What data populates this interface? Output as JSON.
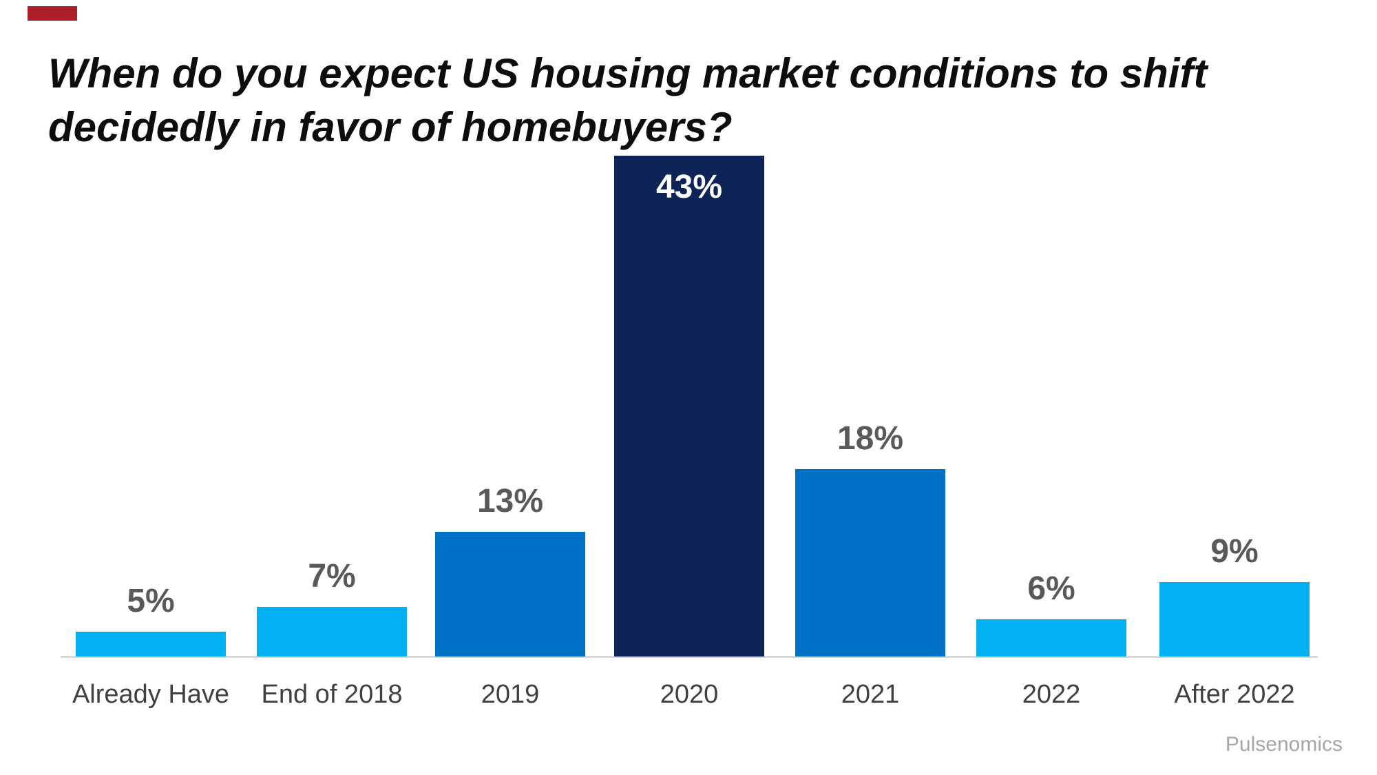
{
  "title": {
    "full": "When do you expect US housing market conditions to shift decidedly in favor of homebuyers?"
  },
  "attribution": "Pulsenomics",
  "colors": {
    "background": "#FFFFFF",
    "corner_mark": "#AD1F28",
    "title_text": "#0D0D0D",
    "axis_line": "#D9D9D9",
    "value_label": "#595959",
    "value_label_inside": "#FFFFFF",
    "category_label": "#404040",
    "attribution_text": "#A6A6A6",
    "bar_light_blue": "#00B0F0",
    "bar_medium_blue": "#0072C6",
    "bar_navy": "#0E2356"
  },
  "chart_data": {
    "type": "bar",
    "title": "When do you expect US housing market conditions to shift decidedly in favor of homebuyers?",
    "xlabel": "",
    "ylabel": "",
    "unit": "%",
    "grid": false,
    "legend": false,
    "axis_baseline_visible": true,
    "source": "Pulsenomics",
    "categories": [
      "Already Have",
      "End of 2018",
      "2019",
      "2020",
      "2021",
      "2022",
      "After 2022"
    ],
    "values": [
      5,
      7,
      13,
      43,
      18,
      6,
      9
    ],
    "value_labels": [
      "5%",
      "7%",
      "13%",
      "43%",
      "18%",
      "6%",
      "9%"
    ],
    "bars": [
      {
        "category": "Already Have",
        "value": 5,
        "display": "5%",
        "color": "#00B0F0",
        "label_inside": false
      },
      {
        "category": "End of 2018",
        "value": 7,
        "display": "7%",
        "color": "#00B0F0",
        "label_inside": false
      },
      {
        "category": "2019",
        "value": 13,
        "display": "13%",
        "color": "#0072C6",
        "label_inside": false
      },
      {
        "category": "2020",
        "value": 43,
        "display": "43%",
        "color": "#0E2356",
        "label_inside": true
      },
      {
        "category": "2021",
        "value": 18,
        "display": "18%",
        "color": "#0072C6",
        "label_inside": false
      },
      {
        "category": "2022",
        "value": 6,
        "display": "6%",
        "color": "#00B0F0",
        "label_inside": false
      },
      {
        "category": "After 2022",
        "value": 9,
        "display": "9%",
        "color": "#00B0F0",
        "label_inside": false
      }
    ]
  }
}
